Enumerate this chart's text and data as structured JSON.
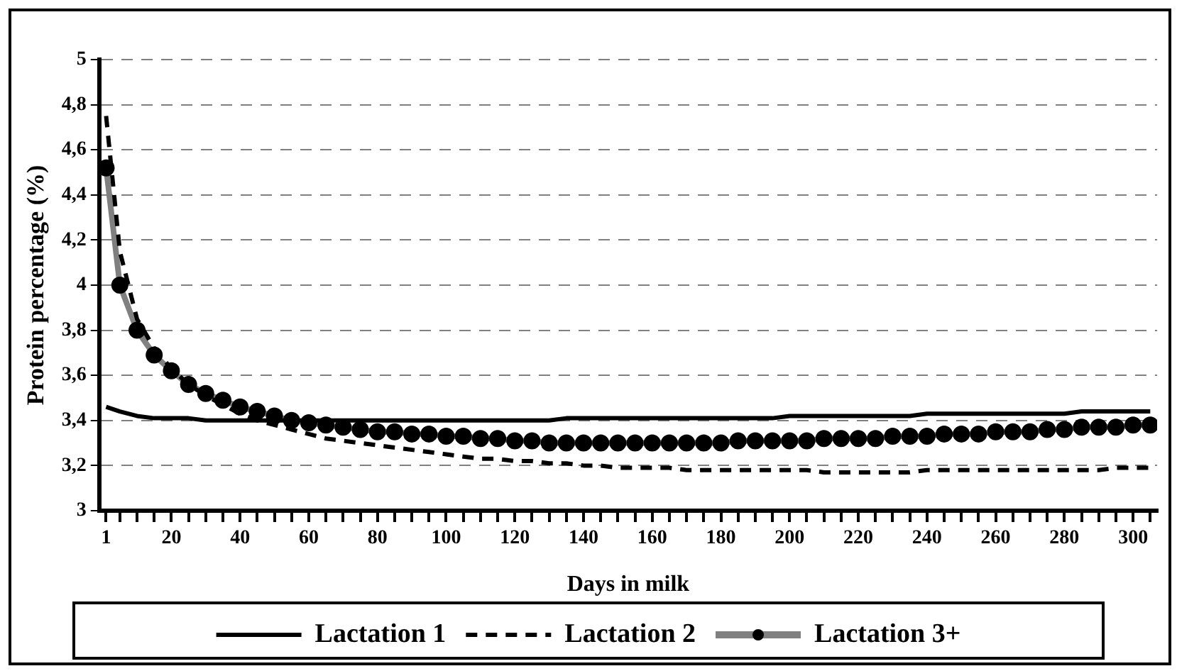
{
  "chart_data": {
    "type": "line",
    "xlabel": "Days in milk",
    "ylabel": "Protein percentage (%)",
    "x": [
      1,
      5,
      10,
      15,
      20,
      25,
      30,
      35,
      40,
      45,
      50,
      55,
      60,
      65,
      70,
      75,
      80,
      85,
      90,
      95,
      100,
      105,
      110,
      115,
      120,
      125,
      130,
      135,
      140,
      145,
      150,
      155,
      160,
      165,
      170,
      175,
      180,
      185,
      190,
      195,
      200,
      205,
      210,
      215,
      220,
      225,
      230,
      235,
      240,
      245,
      250,
      255,
      260,
      265,
      270,
      275,
      280,
      285,
      290,
      295,
      300,
      305
    ],
    "series": [
      {
        "name": "Lactation 1",
        "color": "#000000",
        "line_style": "solid",
        "marker": "none",
        "values": [
          3.46,
          3.44,
          3.42,
          3.41,
          3.41,
          3.41,
          3.4,
          3.4,
          3.4,
          3.4,
          3.4,
          3.4,
          3.4,
          3.4,
          3.4,
          3.4,
          3.4,
          3.4,
          3.4,
          3.4,
          3.4,
          3.4,
          3.4,
          3.4,
          3.4,
          3.4,
          3.4,
          3.41,
          3.41,
          3.41,
          3.41,
          3.41,
          3.41,
          3.41,
          3.41,
          3.41,
          3.41,
          3.41,
          3.41,
          3.41,
          3.42,
          3.42,
          3.42,
          3.42,
          3.42,
          3.42,
          3.42,
          3.42,
          3.43,
          3.43,
          3.43,
          3.43,
          3.43,
          3.43,
          3.43,
          3.43,
          3.43,
          3.44,
          3.44,
          3.44,
          3.44,
          3.44
        ]
      },
      {
        "name": "Lactation 2",
        "color": "#000000",
        "line_style": "dashed",
        "marker": "none",
        "values": [
          4.75,
          4.15,
          3.85,
          3.72,
          3.63,
          3.56,
          3.51,
          3.47,
          3.43,
          3.4,
          3.38,
          3.36,
          3.34,
          3.32,
          3.31,
          3.3,
          3.29,
          3.28,
          3.27,
          3.26,
          3.25,
          3.24,
          3.23,
          3.23,
          3.22,
          3.22,
          3.21,
          3.21,
          3.2,
          3.2,
          3.19,
          3.19,
          3.19,
          3.19,
          3.18,
          3.18,
          3.18,
          3.18,
          3.18,
          3.18,
          3.18,
          3.18,
          3.17,
          3.17,
          3.17,
          3.17,
          3.17,
          3.17,
          3.18,
          3.18,
          3.18,
          3.18,
          3.18,
          3.18,
          3.18,
          3.18,
          3.18,
          3.18,
          3.18,
          3.19,
          3.19,
          3.19
        ]
      },
      {
        "name": "Lactation 3+",
        "color": "#808080",
        "line_style": "solid",
        "marker": "circle",
        "values": [
          4.52,
          4.0,
          3.8,
          3.69,
          3.62,
          3.56,
          3.52,
          3.49,
          3.46,
          3.44,
          3.42,
          3.4,
          3.39,
          3.38,
          3.37,
          3.36,
          3.35,
          3.35,
          3.34,
          3.34,
          3.33,
          3.33,
          3.32,
          3.32,
          3.31,
          3.31,
          3.3,
          3.3,
          3.3,
          3.3,
          3.3,
          3.3,
          3.3,
          3.3,
          3.3,
          3.3,
          3.3,
          3.31,
          3.31,
          3.31,
          3.31,
          3.31,
          3.32,
          3.32,
          3.32,
          3.32,
          3.33,
          3.33,
          3.33,
          3.34,
          3.34,
          3.34,
          3.35,
          3.35,
          3.35,
          3.36,
          3.36,
          3.37,
          3.37,
          3.37,
          3.38,
          3.38
        ]
      }
    ],
    "xlim": [
      -1,
      307
    ],
    "xticks": [
      1,
      {
        "value": 5,
        "label": null
      },
      {
        "value": 10,
        "label": null
      },
      {
        "value": 15,
        "label": null
      },
      20,
      {
        "value": 25,
        "label": null
      },
      {
        "value": 30,
        "label": null
      },
      {
        "value": 35,
        "label": null
      },
      40,
      {
        "value": 45,
        "label": null
      },
      {
        "value": 50,
        "label": null
      },
      {
        "value": 55,
        "label": null
      },
      60,
      {
        "value": 65,
        "label": null
      },
      {
        "value": 70,
        "label": null
      },
      {
        "value": 75,
        "label": null
      },
      80,
      {
        "value": 85,
        "label": null
      },
      {
        "value": 90,
        "label": null
      },
      {
        "value": 95,
        "label": null
      },
      100,
      {
        "value": 105,
        "label": null
      },
      {
        "value": 110,
        "label": null
      },
      {
        "value": 115,
        "label": null
      },
      120,
      {
        "value": 125,
        "label": null
      },
      {
        "value": 130,
        "label": null
      },
      {
        "value": 135,
        "label": null
      },
      140,
      {
        "value": 145,
        "label": null
      },
      {
        "value": 150,
        "label": null
      },
      {
        "value": 155,
        "label": null
      },
      160,
      {
        "value": 165,
        "label": null
      },
      {
        "value": 170,
        "label": null
      },
      {
        "value": 175,
        "label": null
      },
      180,
      {
        "value": 185,
        "label": null
      },
      {
        "value": 190,
        "label": null
      },
      {
        "value": 195,
        "label": null
      },
      200,
      {
        "value": 205,
        "label": null
      },
      {
        "value": 210,
        "label": null
      },
      {
        "value": 215,
        "label": null
      },
      220,
      {
        "value": 225,
        "label": null
      },
      {
        "value": 230,
        "label": null
      },
      {
        "value": 235,
        "label": null
      },
      240,
      {
        "value": 245,
        "label": null
      },
      {
        "value": 250,
        "label": null
      },
      {
        "value": 255,
        "label": null
      },
      260,
      {
        "value": 265,
        "label": null
      },
      {
        "value": 270,
        "label": null
      },
      {
        "value": 275,
        "label": null
      },
      280,
      {
        "value": 285,
        "label": null
      },
      {
        "value": 290,
        "label": null
      },
      {
        "value": 295,
        "label": null
      },
      300,
      {
        "value": 305,
        "label": null
      }
    ],
    "ylim": [
      3,
      5
    ],
    "yticks": [
      3,
      {
        "value": 3.2,
        "label": "3,2"
      },
      {
        "value": 3.4,
        "label": "3,4"
      },
      {
        "value": 3.6,
        "label": "3,6"
      },
      {
        "value": 3.8,
        "label": "3,8"
      },
      4,
      {
        "value": 4.2,
        "label": "4,2"
      },
      {
        "value": 4.4,
        "label": "4,4"
      },
      {
        "value": 4.6,
        "label": "4,6"
      },
      {
        "value": 4.8,
        "label": "4,8"
      },
      5
    ],
    "grid": "y",
    "legend": "bottom"
  }
}
